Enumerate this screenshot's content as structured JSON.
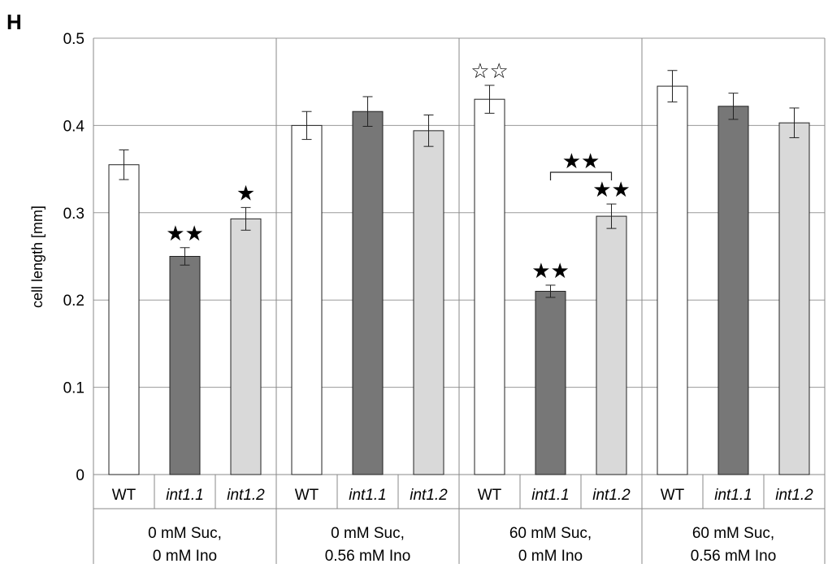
{
  "chart_data": {
    "type": "bar",
    "panel_label": "H",
    "ylabel": "cell length [mm]",
    "ylim": [
      0,
      0.5
    ],
    "yticks": [
      "0",
      "0.1",
      "0.2",
      "0.3",
      "0.4",
      "0.5"
    ],
    "grid": true,
    "groups": [
      {
        "label_line1": "0 mM Suc,",
        "label_line2": "0 mM Ino"
      },
      {
        "label_line1": "0 mM Suc,",
        "label_line2": "0.56 mM Ino"
      },
      {
        "label_line1": "60 mM Suc,",
        "label_line2": "0 mM Ino"
      },
      {
        "label_line1": "60 mM Suc,",
        "label_line2": "0.56 mM Ino"
      }
    ],
    "series": [
      {
        "name": "WT",
        "color": "#ffffff",
        "italic": false,
        "values": [
          0.355,
          0.4,
          0.43,
          0.445
        ],
        "errors": [
          0.017,
          0.016,
          0.016,
          0.018
        ],
        "stars": [
          "",
          "",
          "☆☆",
          ""
        ]
      },
      {
        "name": "int1.1",
        "color": "#777777",
        "italic": true,
        "values": [
          0.25,
          0.416,
          0.21,
          0.422
        ],
        "errors": [
          0.01,
          0.017,
          0.007,
          0.015
        ],
        "stars": [
          "★★",
          "",
          "★★",
          ""
        ]
      },
      {
        "name": "int1.2",
        "color": "#d9d9d9",
        "italic": true,
        "values": [
          0.293,
          0.394,
          0.296,
          0.403
        ],
        "errors": [
          0.013,
          0.018,
          0.014,
          0.017
        ],
        "stars": [
          "★",
          "",
          "★★",
          ""
        ]
      }
    ],
    "bracket": {
      "group": 2,
      "from_series": 1,
      "to_series": 2,
      "label": "★★"
    }
  }
}
